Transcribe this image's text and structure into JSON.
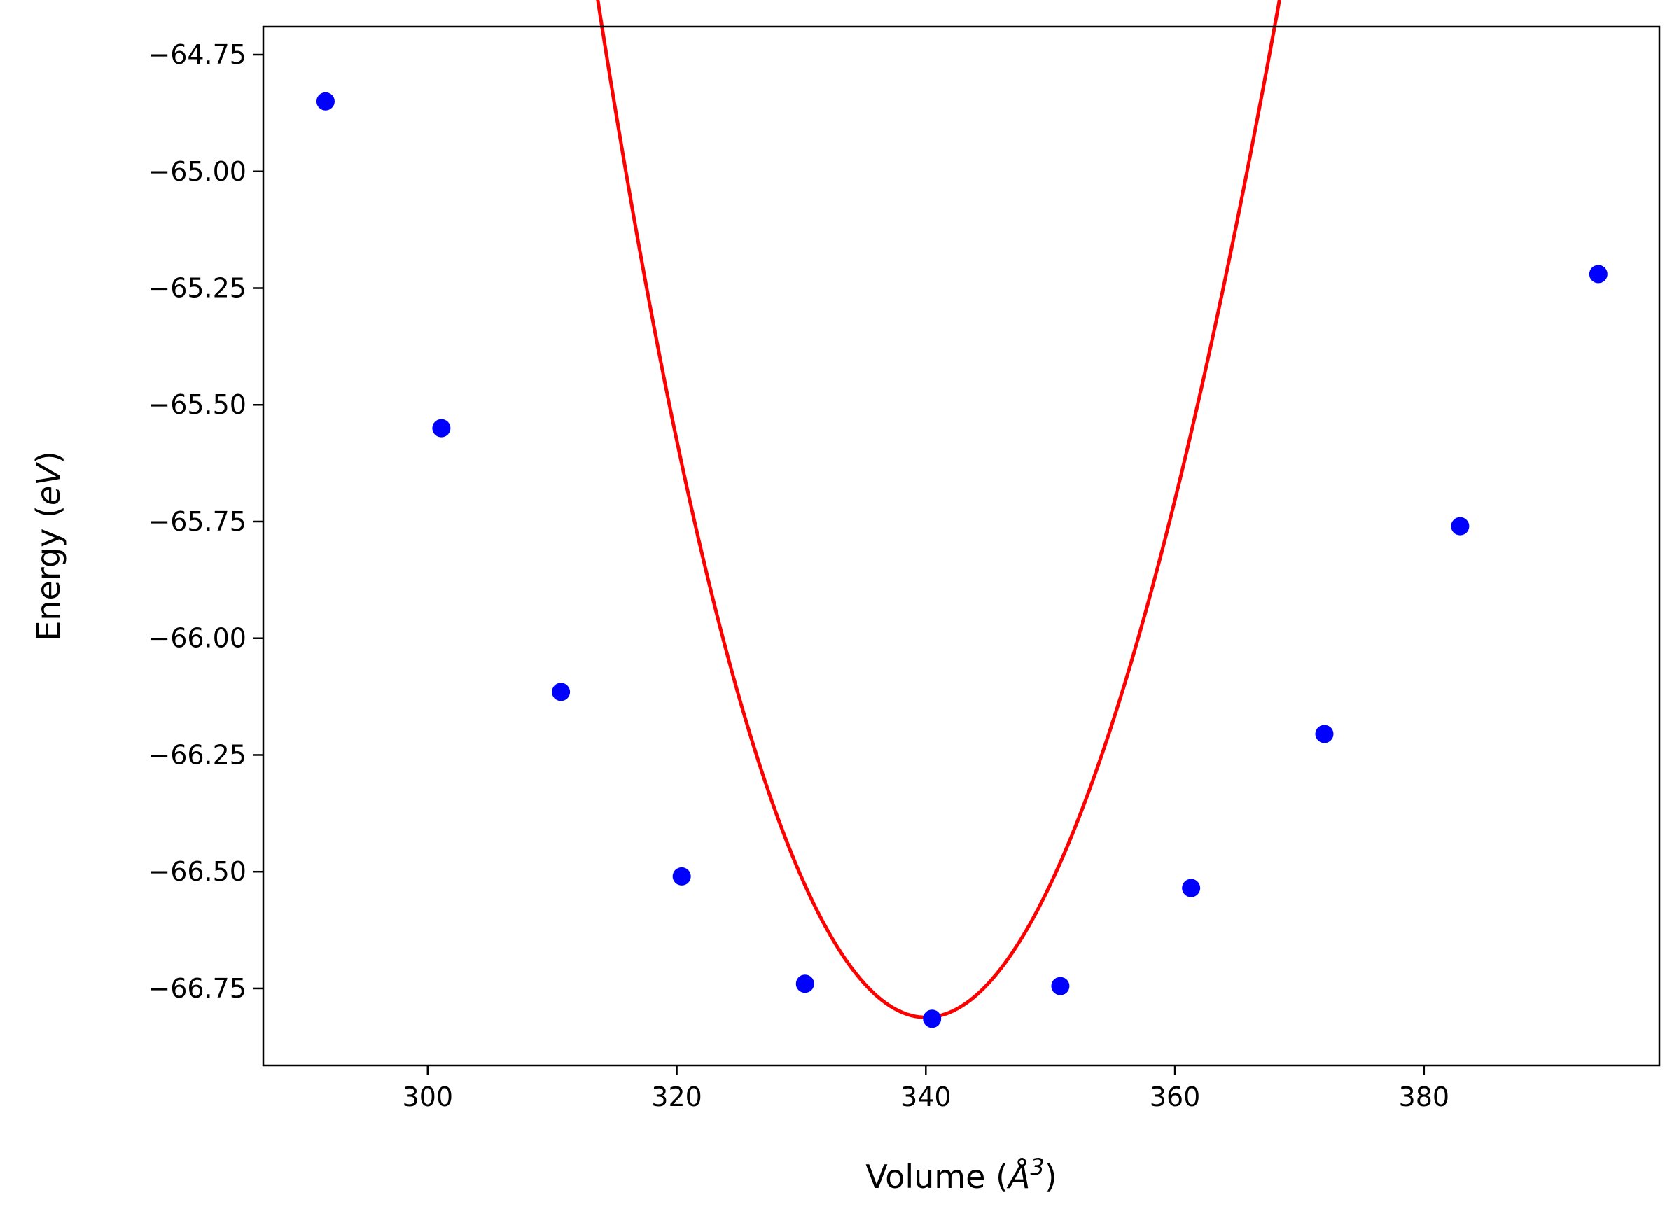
{
  "chart_data": {
    "type": "line",
    "title": "",
    "xlabel": {
      "prefix": "Volume (",
      "symbol": "Å",
      "exponent": "3",
      "suffix": ")"
    },
    "ylabel": {
      "prefix": "Energy (",
      "unit": "eV",
      "suffix": ")"
    },
    "xlim": [
      286.8,
      398.9
    ],
    "ylim": [
      -66.915,
      -64.69
    ],
    "xticks": [
      300,
      320,
      340,
      360,
      380
    ],
    "yticks": [
      -64.75,
      -65.0,
      -65.25,
      -65.5,
      -65.75,
      -66.0,
      -66.25,
      -66.5,
      -66.75
    ],
    "xtick_labels": [
      "300",
      "320",
      "340",
      "360",
      "380"
    ],
    "ytick_labels": [
      "−64.75",
      "−65.00",
      "−65.25",
      "−65.50",
      "−65.75",
      "−66.00",
      "−66.25",
      "−66.50",
      "−66.75"
    ],
    "grid": false,
    "points": {
      "color": "#0000ff",
      "x": [
        291.8,
        301.1,
        310.7,
        320.4,
        330.3,
        340.5,
        350.8,
        361.3,
        372.0,
        382.9,
        394.0
      ],
      "y": [
        -64.85,
        -65.55,
        -66.115,
        -66.51,
        -66.74,
        -66.815,
        -66.745,
        -66.535,
        -66.205,
        -65.76,
        -65.22
      ]
    },
    "fit": {
      "color": "#ff0000",
      "model": {
        "E0": -66.812,
        "V0": 340.0,
        "B": 0.00293,
        "C": -8e-06
      }
    }
  }
}
